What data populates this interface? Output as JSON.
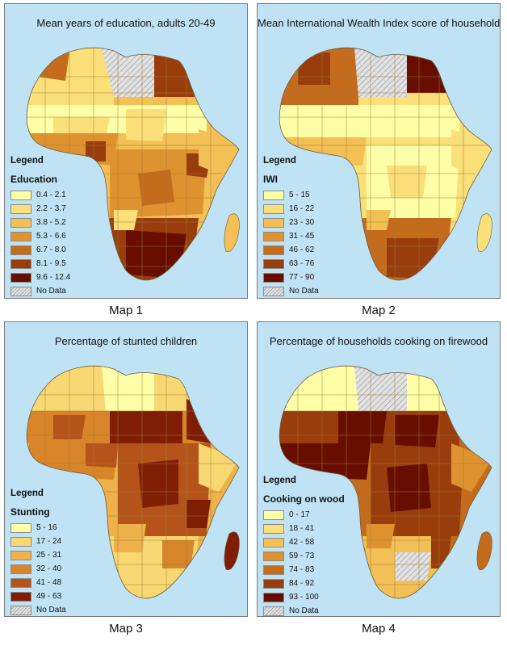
{
  "panels": [
    {
      "title": "Mean years of education, adults 20-49",
      "caption": "Map 1",
      "legend_heading": "Legend",
      "legend_var": "Education",
      "classes": [
        "0.4 - 2.1",
        "2.2 - 3.7",
        "3.8 - 5.2",
        "5.3 - 6.6",
        "6.7 - 8.0",
        "8.1 - 9.5",
        "9.6 - 12.4"
      ],
      "no_data": "No Data"
    },
    {
      "title": "Mean International Wealth Index score of households",
      "caption": "Map 2",
      "legend_heading": "Legend",
      "legend_var": "IWI",
      "classes": [
        "5 - 15",
        "16 - 22",
        "23 - 30",
        "31 - 45",
        "46 - 62",
        "63 - 76",
        "77 - 90"
      ],
      "no_data": "No Data"
    },
    {
      "title": "Percentage of stunted children",
      "caption": "Map 3",
      "legend_heading": "Legend",
      "legend_var": "Stunting",
      "classes": [
        "5 - 16",
        "17 - 24",
        "25 - 31",
        "32 - 40",
        "41 - 48",
        "49 - 63"
      ],
      "no_data": "No Data"
    },
    {
      "title": "Percentage of households cooking on firewood",
      "caption": "Map 4",
      "legend_heading": "Legend",
      "legend_var": "Cooking on wood",
      "classes": [
        "0 - 17",
        "18 - 41",
        "42 - 58",
        "59 - 73",
        "74 - 83",
        "84 - 92",
        "93 - 100"
      ],
      "no_data": "No Data"
    }
  ],
  "colors": {
    "ocean": "#bfe3f5",
    "ramp7": [
      "#ffffa8",
      "#fbdf79",
      "#f2c055",
      "#df9330",
      "#c56b1c",
      "#993d0c",
      "#680e00"
    ],
    "ramp6": [
      "#ffffa8",
      "#f9d873",
      "#efb14b",
      "#d8852a",
      "#b4541a",
      "#7f1e05"
    ],
    "no_data": "#d9d9d9",
    "borders": "#a07a3a"
  }
}
